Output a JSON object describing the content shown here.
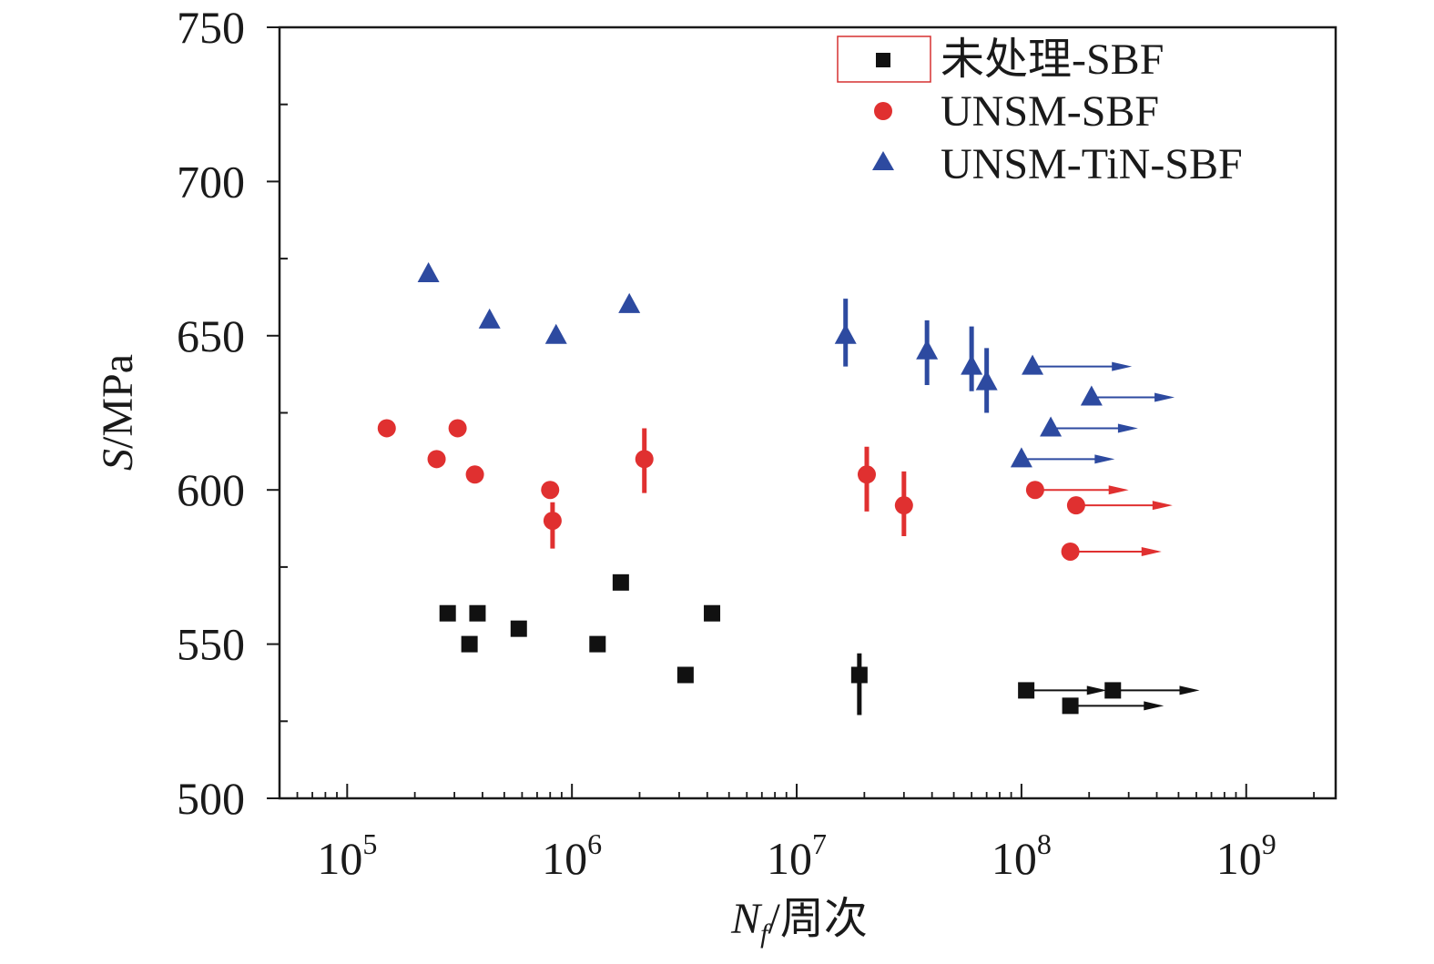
{
  "chart_data": {
    "type": "scatter",
    "title": "",
    "xlabel": {
      "main": "N",
      "sub": "f",
      "suffix": "/周次"
    },
    "ylabel": {
      "italic": "S",
      "rest": "/MPa"
    },
    "x_scale": "log",
    "xlim": [
      50000,
      2500000000
    ],
    "ylim": [
      500,
      750
    ],
    "yticks": [
      500,
      550,
      600,
      650,
      700,
      750
    ],
    "yticks_minor": [
      525,
      575,
      625,
      675,
      725
    ],
    "xticks": [
      {
        "value": 100000,
        "base": "10",
        "exp": "5"
      },
      {
        "value": 1000000,
        "base": "10",
        "exp": "6"
      },
      {
        "value": 10000000,
        "base": "10",
        "exp": "7"
      },
      {
        "value": 100000000,
        "base": "10",
        "exp": "8"
      },
      {
        "value": 1000000000,
        "base": "10",
        "exp": "9"
      }
    ],
    "legend_position": "top-right",
    "series": [
      {
        "name": "未处理-SBF",
        "marker": "square",
        "color": "#111111",
        "points": [
          {
            "x": 280000,
            "y": 560
          },
          {
            "x": 380000,
            "y": 560
          },
          {
            "x": 350000,
            "y": 550
          },
          {
            "x": 580000,
            "y": 555
          },
          {
            "x": 1300000,
            "y": 550
          },
          {
            "x": 1650000,
            "y": 570
          },
          {
            "x": 3200000,
            "y": 540
          },
          {
            "x": 4200000,
            "y": 560
          },
          {
            "x": 19000000,
            "y": 540,
            "err_low": 527,
            "err_high": 547
          },
          {
            "x": 105000000,
            "y": 535,
            "runout_to": 240000000
          },
          {
            "x": 165000000,
            "y": 530,
            "runout_to": 430000000
          },
          {
            "x": 255000000,
            "y": 535,
            "runout_to": 620000000
          }
        ]
      },
      {
        "name": "UNSM-SBF",
        "marker": "circle",
        "color": "#e03030",
        "points": [
          {
            "x": 150000,
            "y": 620
          },
          {
            "x": 250000,
            "y": 610
          },
          {
            "x": 310000,
            "y": 620
          },
          {
            "x": 370000,
            "y": 605
          },
          {
            "x": 800000,
            "y": 600
          },
          {
            "x": 820000,
            "y": 590,
            "err_low": 581,
            "err_high": 596
          },
          {
            "x": 2100000,
            "y": 610,
            "err_low": 599,
            "err_high": 620
          },
          {
            "x": 20500000,
            "y": 605,
            "err_low": 593,
            "err_high": 614
          },
          {
            "x": 30000000,
            "y": 595,
            "err_low": 585,
            "err_high": 606
          },
          {
            "x": 115000000,
            "y": 600,
            "runout_to": 300000000
          },
          {
            "x": 175000000,
            "y": 595,
            "runout_to": 470000000
          },
          {
            "x": 165000000,
            "y": 580,
            "runout_to": 420000000
          }
        ]
      },
      {
        "name": "UNSM-TiN-SBF",
        "marker": "triangle",
        "color": "#2d4aa0",
        "points": [
          {
            "x": 230000,
            "y": 670
          },
          {
            "x": 430000,
            "y": 655
          },
          {
            "x": 850000,
            "y": 650
          },
          {
            "x": 1800000,
            "y": 660
          },
          {
            "x": 16500000,
            "y": 650,
            "err_low": 640,
            "err_high": 662
          },
          {
            "x": 38000000,
            "y": 645,
            "err_low": 634,
            "err_high": 655
          },
          {
            "x": 60000000,
            "y": 640,
            "err_low": 632,
            "err_high": 653
          },
          {
            "x": 70000000,
            "y": 635,
            "err_low": 625,
            "err_high": 646
          },
          {
            "x": 112000000,
            "y": 640,
            "runout_to": 310000000
          },
          {
            "x": 205000000,
            "y": 630,
            "runout_to": 480000000
          },
          {
            "x": 135000000,
            "y": 620,
            "runout_to": 330000000
          },
          {
            "x": 100000000,
            "y": 610,
            "runout_to": 260000000
          }
        ]
      }
    ]
  }
}
